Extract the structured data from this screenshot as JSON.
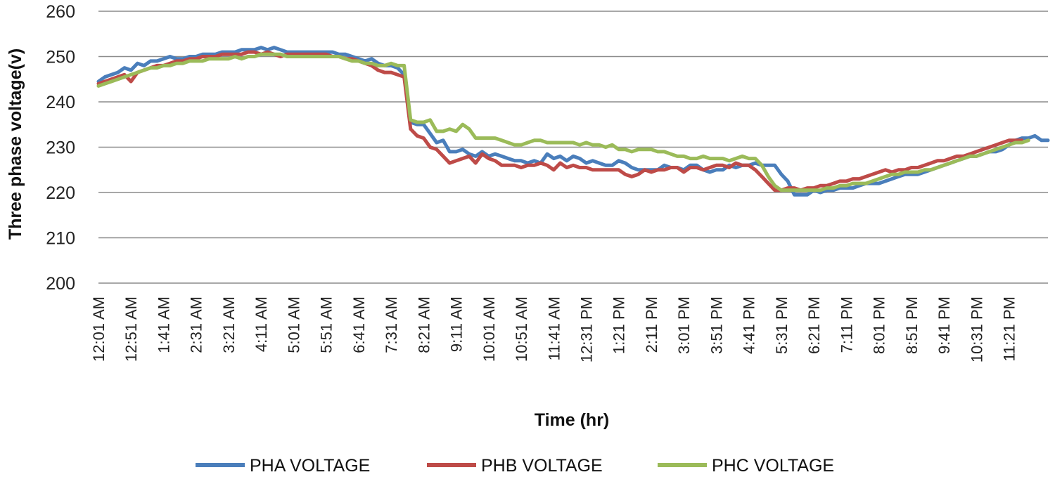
{
  "chart_data": {
    "type": "line",
    "title": "",
    "xlabel": "Time (hr)",
    "ylabel": "Three phase voltage(v)",
    "ylim": [
      200,
      260
    ],
    "yticks": [
      200,
      210,
      220,
      230,
      240,
      250,
      260
    ],
    "grid": true,
    "legend_position": "bottom",
    "x_step_minutes": 10,
    "x_start_minutes": 1,
    "x_tick_labels": [
      "12:01 AM",
      "12:51 AM",
      "1:41 AM",
      "2:31 AM",
      "3:21 AM",
      "4:11 AM",
      "5:01 AM",
      "5:51 AM",
      "6:41 AM",
      "7:31 AM",
      "8:21 AM",
      "9:11 AM",
      "10:01 AM",
      "10:51 AM",
      "11:41 AM",
      "12:31 PM",
      "1:21 PM",
      "2:11 PM",
      "3:01 PM",
      "3:51 PM",
      "4:41 PM",
      "5:31 PM",
      "6:21 PM",
      "7:11 PM",
      "8:01 PM",
      "8:51 PM",
      "9:41 PM",
      "10:31 PM",
      "11:21 PM"
    ],
    "series": [
      {
        "name": "PHA VOLTAGE",
        "color": "#4a7ebb",
        "values": [
          244.5,
          245.5,
          246,
          246.5,
          247.5,
          247,
          248.5,
          248,
          249,
          249,
          249.5,
          250,
          249.5,
          249.5,
          250,
          250,
          250.5,
          250.5,
          250.5,
          251,
          251,
          251,
          251.5,
          251.5,
          251.5,
          252,
          251.5,
          252,
          251.5,
          251,
          251,
          251,
          251,
          251,
          251,
          251,
          251,
          250.5,
          250.5,
          250,
          249.5,
          249,
          249.5,
          248.5,
          248,
          248,
          247.5,
          246,
          235.5,
          235,
          235,
          233,
          231,
          231.5,
          229,
          229,
          229.5,
          228.5,
          228,
          229,
          228,
          228.5,
          228,
          227.5,
          227,
          227,
          226.5,
          227,
          226.5,
          228.5,
          227.5,
          228,
          227,
          228,
          227.5,
          226.5,
          227,
          226.5,
          226,
          226,
          227,
          226.5,
          225.5,
          225,
          225,
          225,
          225,
          226,
          225.5,
          225.5,
          225,
          226,
          226,
          225,
          224.5,
          225,
          225,
          226,
          225.5,
          226,
          226,
          226.5,
          226,
          226,
          226,
          224,
          222.5,
          219.5,
          219.5,
          219.5,
          220.5,
          220,
          220.5,
          220.5,
          221,
          221,
          221,
          221.5,
          222,
          222,
          222,
          222.5,
          223,
          223.5,
          224,
          224,
          224,
          224.5,
          225,
          225.5,
          226,
          226.5,
          227,
          227.5,
          228,
          228,
          228.5,
          229,
          229,
          229.5,
          230.5,
          231.5,
          232,
          232,
          232.5,
          231.5,
          231.5
        ]
      },
      {
        "name": "PHB VOLTAGE",
        "color": "#be4b48",
        "values": [
          244,
          244.5,
          245,
          245.5,
          246,
          244.5,
          246.5,
          247,
          247.5,
          248,
          248,
          248.5,
          249,
          249,
          249.5,
          249.5,
          250,
          250,
          250,
          250.5,
          250.5,
          250.5,
          250.5,
          251,
          251,
          250.5,
          251,
          250.5,
          250,
          250.5,
          250.5,
          250.5,
          250.5,
          250.5,
          250.5,
          250.5,
          250,
          250,
          249.5,
          249.5,
          249,
          248.5,
          248,
          247,
          246.5,
          246.5,
          246,
          245.5,
          234,
          232.5,
          232,
          230,
          229.5,
          228,
          226.5,
          227,
          227.5,
          228,
          226.5,
          228.5,
          227.5,
          227,
          226,
          226,
          226,
          225.5,
          226,
          226,
          226.5,
          226,
          225,
          226.5,
          225.5,
          226,
          225.5,
          225.5,
          225,
          225,
          225,
          225,
          225,
          224,
          223.5,
          224,
          225,
          224.5,
          225,
          225,
          225.5,
          225.5,
          224.5,
          225.5,
          225.5,
          225,
          225.5,
          226,
          226,
          225.5,
          226.5,
          226,
          226,
          225,
          223.5,
          222,
          220.5,
          220.5,
          221,
          221,
          220.5,
          221,
          221,
          221.5,
          221.5,
          222,
          222.5,
          222.5,
          223,
          223,
          223.5,
          224,
          224.5,
          225,
          224.5,
          225,
          225,
          225.5,
          225.5,
          226,
          226.5,
          227,
          227,
          227.5,
          228,
          228,
          228.5,
          229,
          229.5,
          230,
          230.5,
          231,
          231.5,
          231.5,
          231.5
        ]
      },
      {
        "name": "PHC VOLTAGE",
        "color": "#9bbb59",
        "values": [
          243.5,
          244,
          244.5,
          245,
          245.5,
          246,
          246.5,
          247,
          247.5,
          247.5,
          248,
          248,
          248.5,
          248.5,
          249,
          249,
          249,
          249.5,
          249.5,
          249.5,
          249.5,
          250,
          249.5,
          250,
          250,
          250.5,
          250.5,
          250.5,
          250.5,
          250,
          250,
          250,
          250,
          250,
          250,
          250,
          250,
          250,
          249.5,
          249,
          249,
          248.5,
          248.5,
          248,
          248,
          248.5,
          248,
          248,
          236,
          235.5,
          235.5,
          236,
          233.5,
          233.5,
          234,
          233.5,
          235,
          234,
          232,
          232,
          232,
          232,
          231.5,
          231,
          230.5,
          230.5,
          231,
          231.5,
          231.5,
          231,
          231,
          231,
          231,
          231,
          230.5,
          231,
          230.5,
          230.5,
          230,
          230.5,
          229.5,
          229.5,
          229,
          229.5,
          229.5,
          229.5,
          229,
          229,
          228.5,
          228,
          228,
          227.5,
          227.5,
          228,
          227.5,
          227.5,
          227.5,
          227,
          227.5,
          228,
          227.5,
          227.5,
          226,
          223.5,
          221.5,
          220.5,
          220.5,
          220.5,
          220.5,
          220.5,
          220.5,
          220.5,
          221,
          221,
          221.5,
          221.5,
          222,
          222,
          222,
          222.5,
          223,
          223.5,
          224,
          224,
          224.5,
          224.5,
          224.5,
          225,
          225,
          225.5,
          226,
          226.5,
          227,
          227.5,
          228,
          228,
          228.5,
          229,
          229.5,
          230,
          230.5,
          231,
          231,
          231.5
        ]
      }
    ]
  }
}
